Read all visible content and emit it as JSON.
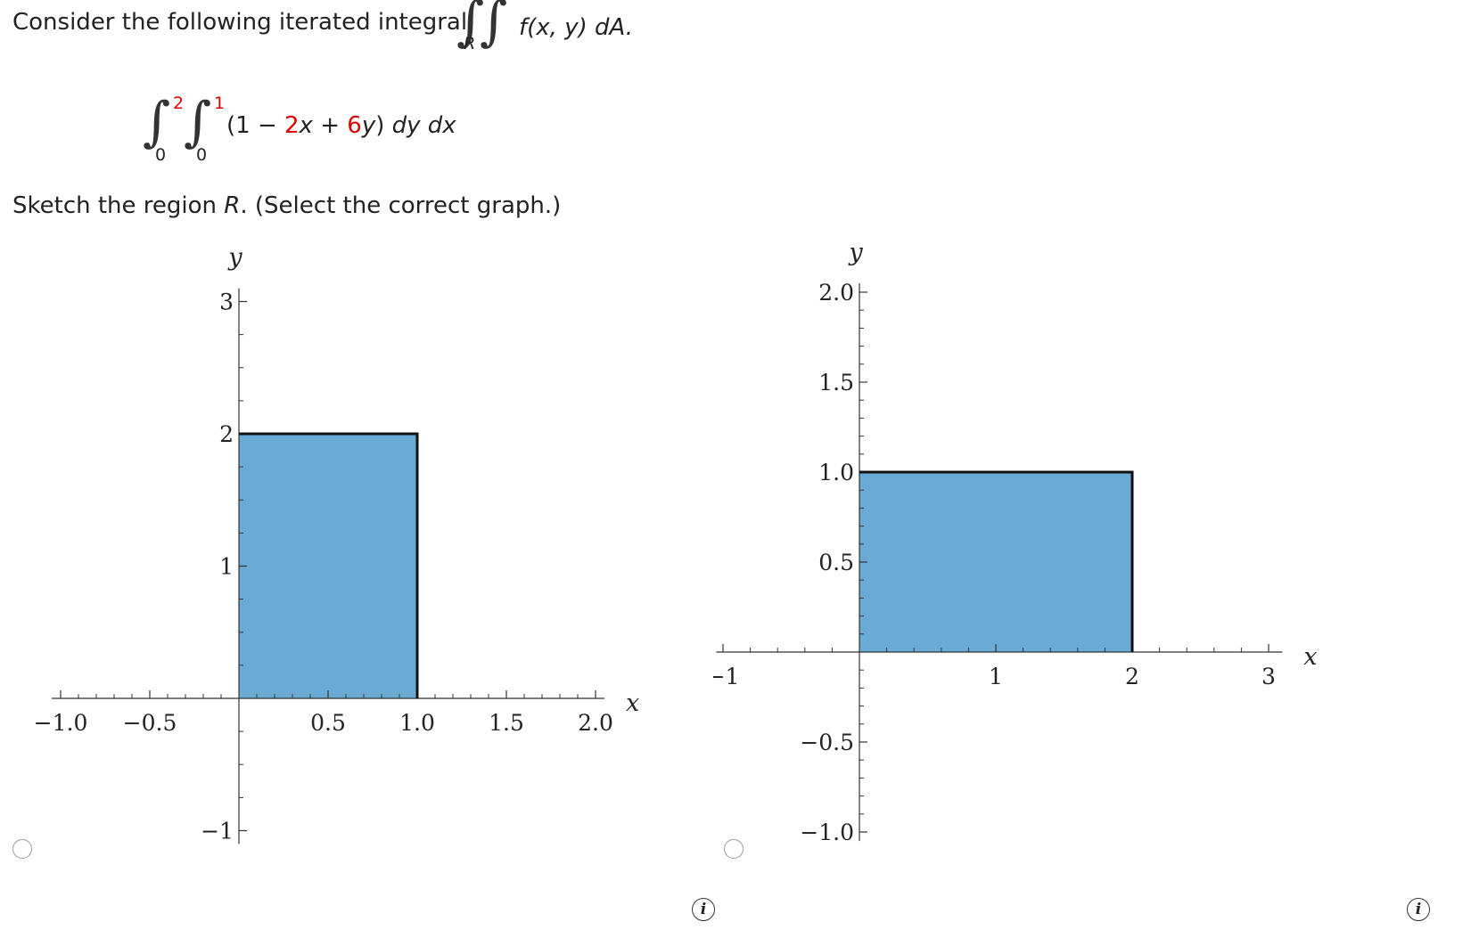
{
  "question": {
    "intro": "Consider the following iterated integral",
    "region_subscript": "R",
    "integrand_tail": "f(x, y) dA.",
    "iterated": {
      "outer_upper": "2",
      "outer_lower": "0",
      "inner_upper": "1",
      "inner_lower": "0",
      "open": "(1 − ",
      "coef_x": "2",
      "var_x": "x",
      "plus": " + ",
      "coef_y": "6",
      "var_y": "y",
      "close": ")",
      "differentials": "dy dx"
    },
    "instruction_start": "Sketch the region ",
    "instruction_var": "R",
    "instruction_end": ". (Select the correct graph.)"
  },
  "colors": {
    "region_fill": "#6aabd6",
    "region_edge": "#111111",
    "highlight": "#e00000"
  },
  "options": [
    {
      "id": "option-a",
      "info_label": "i",
      "chart_data": {
        "type": "area",
        "xlabel": "x",
        "ylabel": "y",
        "xlim": [
          -1.05,
          2.05
        ],
        "ylim": [
          -1.1,
          3.1
        ],
        "x_ticks": [
          -1.0,
          -0.5,
          0.5,
          1.0,
          1.5,
          2.0
        ],
        "x_tick_labels": [
          "−1.0",
          "−0.5",
          "0.5",
          "1.0",
          "1.5",
          "2.0"
        ],
        "y_ticks": [
          -1,
          1,
          2,
          3
        ],
        "y_tick_labels": [
          "−1",
          "1",
          "2",
          "3"
        ],
        "region": {
          "x_min": 0,
          "x_max": 1,
          "y_min": 0,
          "y_max": 2
        }
      }
    },
    {
      "id": "option-b",
      "info_label": "i",
      "chart_data": {
        "type": "area",
        "xlabel": "x",
        "ylabel": "y",
        "xlim": [
          -1.05,
          3.1
        ],
        "ylim": [
          -1.05,
          2.05
        ],
        "x_ticks": [
          -1,
          1,
          2,
          3
        ],
        "x_tick_labels": [
          "−1",
          "1",
          "2",
          "3"
        ],
        "y_ticks": [
          -1.0,
          -0.5,
          0.5,
          1.0,
          1.5,
          2.0
        ],
        "y_tick_labels": [
          "−1.0",
          "−0.5",
          "0.5",
          "1.0",
          "1.5",
          "2.0"
        ],
        "region": {
          "x_min": 0,
          "x_max": 2,
          "y_min": 0,
          "y_max": 1
        }
      }
    }
  ]
}
